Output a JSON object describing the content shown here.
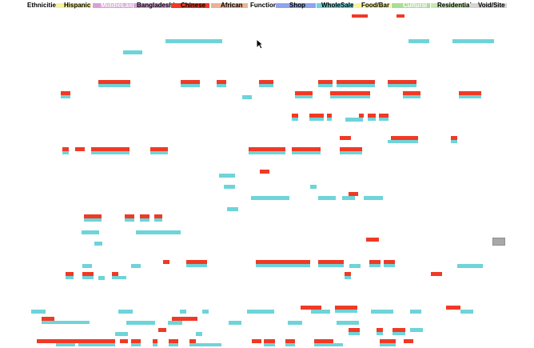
{
  "legend": {
    "items": [
      {
        "label": "Ethnicities",
        "color": "",
        "text_color": "#222222"
      },
      {
        "label": "Hispanic",
        "color": "#f6f39a",
        "text_color": "#222222"
      },
      {
        "label": "MiddleEast",
        "color": "#d8a0d6",
        "text_color": "#ffffff"
      },
      {
        "label": "Bangladeshi",
        "color": "#d9a6dc",
        "text_color": "#222222"
      },
      {
        "label": "Chinese",
        "color": "#f03a25",
        "text_color": "#222222"
      },
      {
        "label": "African",
        "color": "#eab394",
        "text_color": "#222222"
      },
      {
        "label": "Functions",
        "color": "#e9b392",
        "text_color": "#222222"
      },
      {
        "label": "Shop",
        "color": "#8fa3ee",
        "text_color": "#222222"
      },
      {
        "label": "WholeSale",
        "color": "#6ed4d8",
        "text_color": "#222222"
      },
      {
        "label": "Food/Bar",
        "color": "#f6f39a",
        "text_color": "#222222"
      },
      {
        "label": "Cultural",
        "color": "#a9dd98",
        "text_color": "#ffffff"
      },
      {
        "label": "Residential",
        "color": "#c8e7b5",
        "text_color": "#222222"
      },
      {
        "label": "Void/Site",
        "color": "#d4d4d4",
        "text_color": "#222222"
      }
    ]
  },
  "colors": {
    "chinese": "#f03a25",
    "wholesale": "#6ed4d8",
    "void": "#a8a8a8"
  },
  "cursor_icon": "arrow-pointer-icon"
}
